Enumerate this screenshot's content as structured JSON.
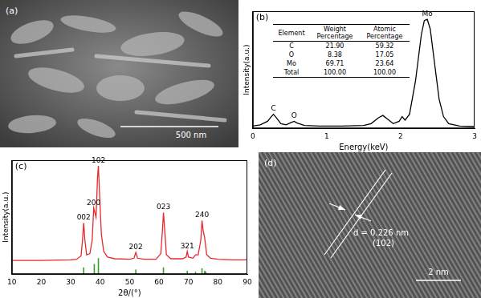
{
  "chart_data": [
    {
      "type": "line",
      "label": "(b)",
      "x_label": "Energy(keV)",
      "y_label": "Intensity(a.u.)",
      "xlim": [
        0,
        3
      ],
      "xticks": [
        0,
        1,
        2,
        3
      ],
      "ylim": [
        0,
        100
      ],
      "yticks": [],
      "tick_labels": "x",
      "grid": false,
      "series": [
        {
          "color": "#000000",
          "x": [
            0,
            0.1,
            0.2,
            0.25,
            0.28,
            0.32,
            0.38,
            0.45,
            0.52,
            0.56,
            0.6,
            0.7,
            0.9,
            1.2,
            1.5,
            1.6,
            1.7,
            1.76,
            1.82,
            1.9,
            1.98,
            2.02,
            2.06,
            2.12,
            2.2,
            2.28,
            2.32,
            2.36,
            2.4,
            2.46,
            2.52,
            2.58,
            2.65,
            2.8,
            3.0
          ],
          "values": [
            2,
            3,
            6,
            10,
            12,
            9,
            4,
            3,
            5,
            6,
            4.5,
            2.5,
            2,
            2,
            2.5,
            4,
            9,
            11,
            8,
            4,
            6,
            10,
            7,
            12,
            40,
            80,
            92,
            93,
            85,
            55,
            25,
            10,
            4,
            2,
            1.5
          ]
        }
      ],
      "annotations": [
        {
          "text": "C",
          "x": 0.28
        },
        {
          "text": "O",
          "x": 0.56
        },
        {
          "text": "Mo",
          "x": 2.36
        }
      ],
      "table": {
        "header": [
          "Element",
          "Weight Percentage",
          "Atomic Percentage"
        ],
        "rows": [
          [
            "C",
            "21.90",
            "59.32"
          ],
          [
            "O",
            "8.38",
            "17.05"
          ],
          [
            "Mo",
            "69.71",
            "23.64"
          ],
          [
            "Total",
            "100.00",
            "100.00"
          ]
        ]
      }
    },
    {
      "type": "line",
      "label": "(c)",
      "x_label": "2θ/(°)",
      "y_label": "Intensity(a.u.)",
      "xlim": [
        10,
        90
      ],
      "xticks": [
        10,
        20,
        30,
        40,
        50,
        60,
        70,
        80,
        90
      ],
      "ylim": [
        0,
        100
      ],
      "yticks": [],
      "tick_labels": "x",
      "grid": false,
      "series": [
        {
          "color": "#e8282b",
          "x": [
            10,
            20,
            30,
            32,
            33.5,
            34.0,
            34.4,
            34.8,
            35.4,
            36.5,
            37.3,
            37.8,
            38.1,
            38.6,
            39.1,
            39.4,
            39.8,
            40.4,
            41.2,
            42.5,
            45,
            50,
            51.5,
            52.1,
            52.7,
            55,
            59,
            60.6,
            61.2,
            61.5,
            61.9,
            62.5,
            64,
            68,
            69.2,
            69.6,
            70.0,
            71.5,
            72.4,
            73.3,
            74.2,
            74.6,
            75.0,
            75.5,
            76.2,
            77.5,
            80,
            85,
            90
          ],
          "values": [
            12,
            12,
            12.5,
            13,
            16,
            30,
            45,
            30,
            17,
            18,
            30,
            58,
            55,
            50,
            85,
            95,
            70,
            35,
            20,
            15,
            13.5,
            13,
            14,
            19,
            14,
            13,
            13,
            18,
            40,
            54,
            40,
            17,
            13.5,
            13.5,
            15,
            20,
            15,
            14,
            17,
            17,
            30,
            47,
            38,
            32,
            17,
            14,
            13,
            12.5,
            12.5
          ]
        },
        {
          "type": "stem",
          "color": "#33a02c",
          "x": [
            34.4,
            38.0,
            39.4,
            52.1,
            61.5,
            69.6,
            72.4,
            74.6,
            75.5,
            75.9
          ],
          "values": [
            6,
            9,
            14,
            4,
            6,
            3,
            2,
            5,
            3,
            2
          ]
        }
      ],
      "annotations": [
        {
          "text": "002",
          "x": 34.4
        },
        {
          "text": "200",
          "x": 37.8
        },
        {
          "text": "102",
          "x": 39.4
        },
        {
          "text": "202",
          "x": 52.1
        },
        {
          "text": "023",
          "x": 61.5
        },
        {
          "text": "321",
          "x": 69.6
        },
        {
          "text": "240",
          "x": 74.6
        }
      ]
    }
  ],
  "images": [
    {
      "label": "(a)",
      "scale_bar": "500 nm"
    },
    {
      "label": "(d)",
      "annotation": "d = 0.226 nm",
      "plane": "(102)",
      "scale_bar": "2 nm"
    }
  ]
}
